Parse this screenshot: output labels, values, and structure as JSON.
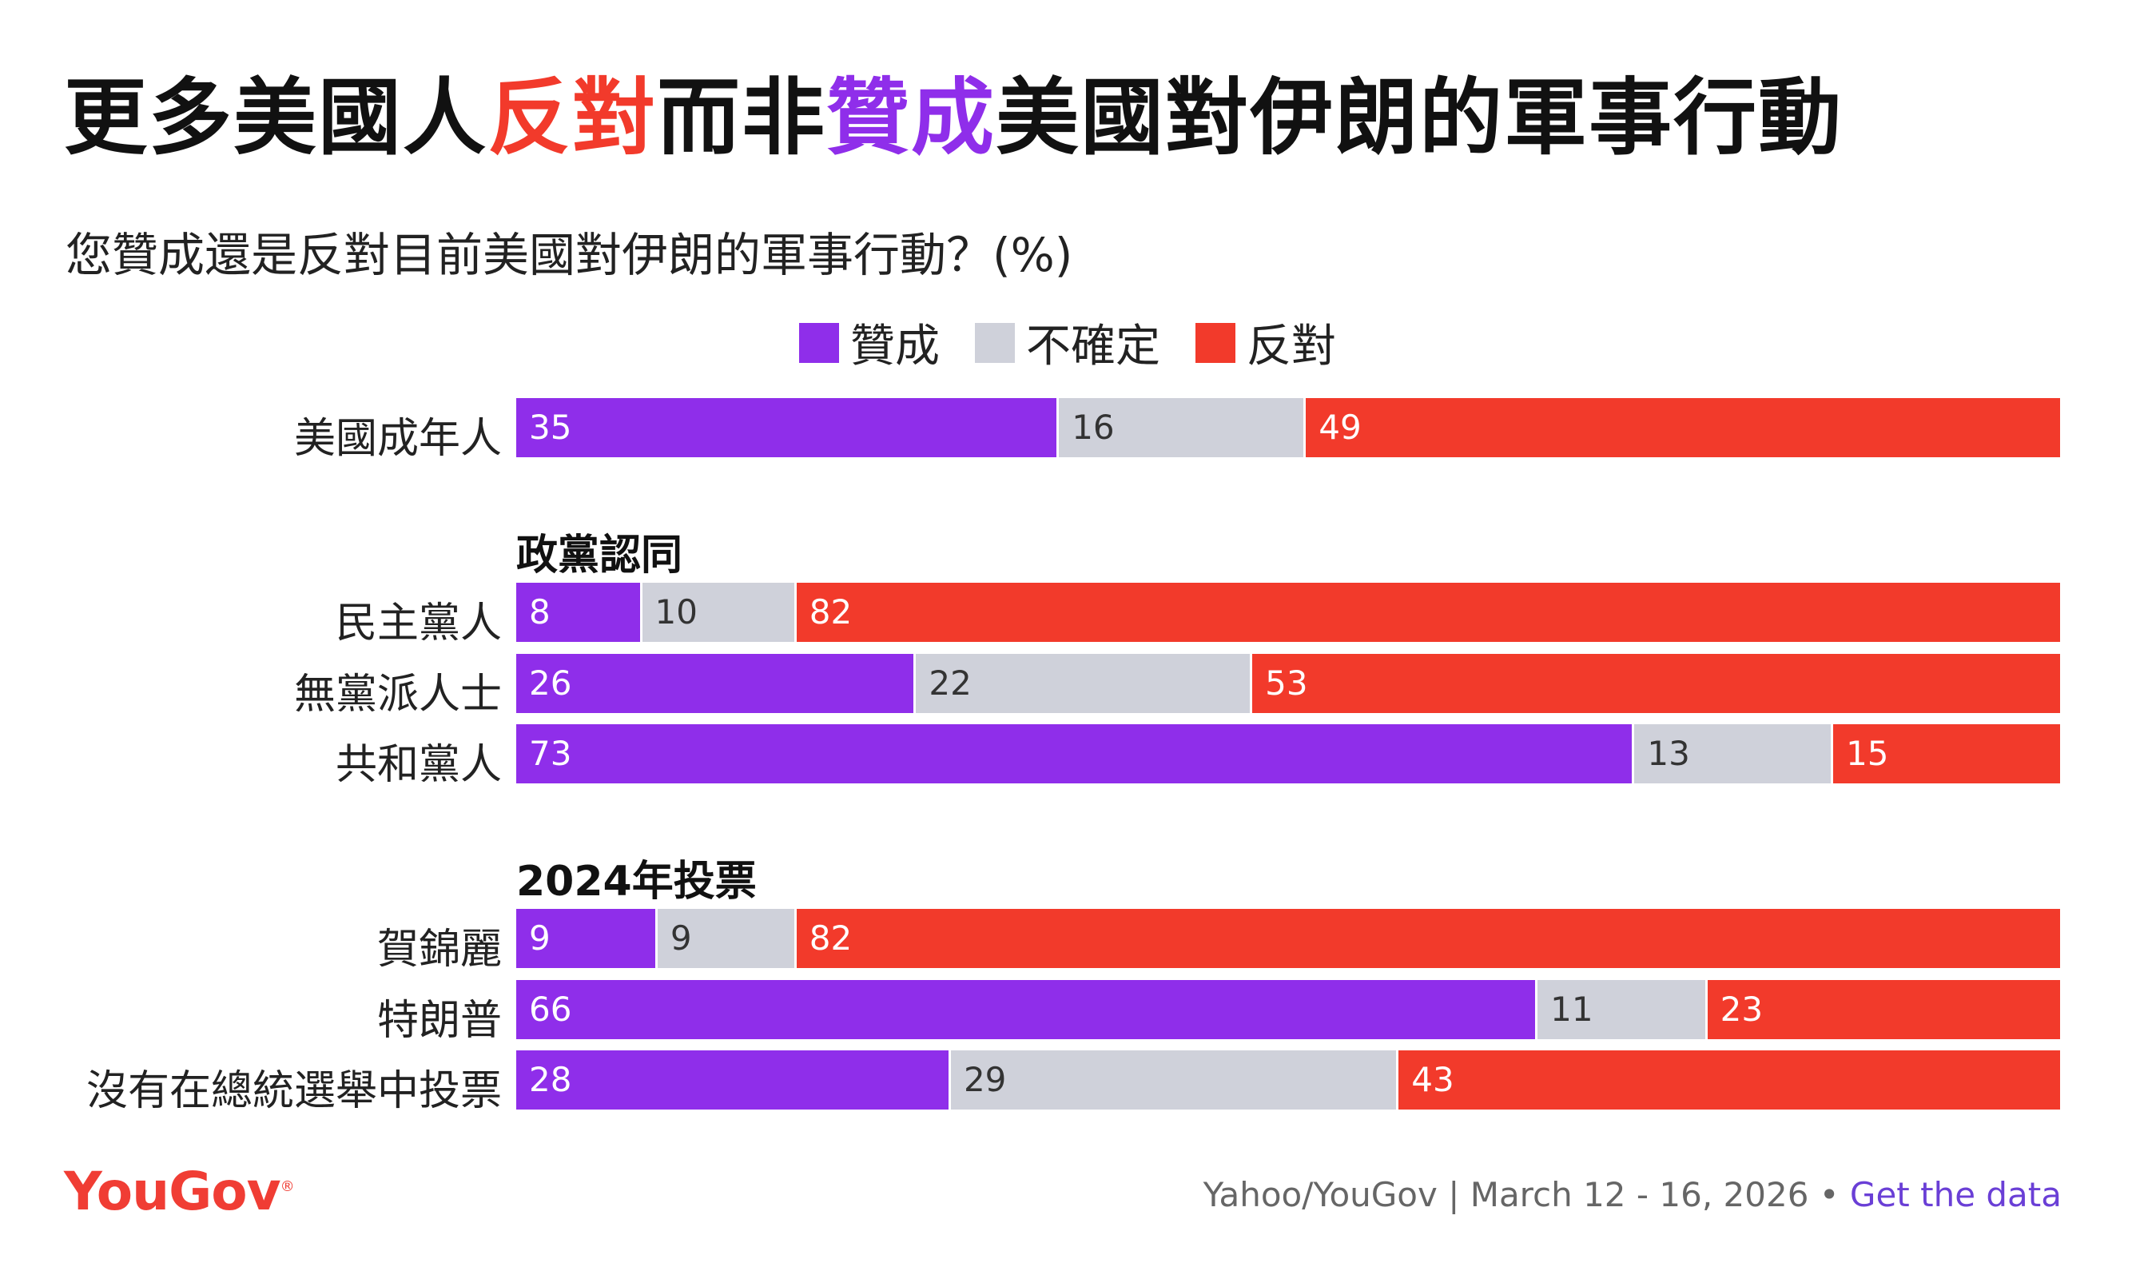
{
  "title": {
    "part1": "更多美國人",
    "highlight_oppose": "反對",
    "part2": "而非",
    "highlight_support": "贊成",
    "part3": "美國對伊朗的軍事行動"
  },
  "subtitle": "您贊成還是反對目前美國對伊朗的軍事行動？(%)",
  "legend": [
    {
      "label": "贊成",
      "color": "#8f2eea"
    },
    {
      "label": "不確定",
      "color": "#cfd1da"
    },
    {
      "label": "反對",
      "color": "#f23a2b"
    }
  ],
  "chart_data": {
    "type": "bar",
    "orientation": "horizontal",
    "stacked": true,
    "title": "更多美國人反對而非贊成美國對伊朗的軍事行動",
    "subtitle": "您贊成還是反對目前美國對伊朗的軍事行動？(%)",
    "xlim": [
      0,
      100
    ],
    "series_names": [
      "贊成",
      "不確定",
      "反對"
    ],
    "series_colors": [
      "#8f2eea",
      "#cfd1da",
      "#f23a2b"
    ],
    "groups": [
      {
        "heading": "",
        "rows": [
          {
            "label": "美國成年人",
            "values": [
              35,
              16,
              49
            ]
          }
        ]
      },
      {
        "heading": "政黨認同",
        "rows": [
          {
            "label": "民主黨人",
            "values": [
              8,
              10,
              82
            ]
          },
          {
            "label": "無黨派人士",
            "values": [
              26,
              22,
              53
            ]
          },
          {
            "label": "共和黨人",
            "values": [
              73,
              13,
              15
            ]
          }
        ]
      },
      {
        "heading": "2024年投票",
        "rows": [
          {
            "label": "賀錦麗",
            "values": [
              9,
              9,
              82
            ]
          },
          {
            "label": "特朗普",
            "values": [
              66,
              11,
              23
            ]
          },
          {
            "label": "沒有在總統選舉中投票",
            "values": [
              28,
              29,
              43
            ]
          }
        ]
      }
    ]
  },
  "footer": {
    "logo": "YouGov",
    "source": "Yahoo/YouGov | March 12 - 16, 2026 • ",
    "link": "Get the data"
  }
}
